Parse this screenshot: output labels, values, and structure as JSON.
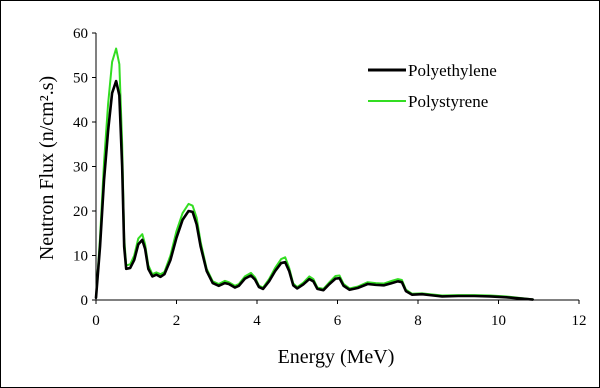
{
  "chart_data": {
    "type": "line",
    "title": "",
    "xlabel": "Energy (MeV)",
    "ylabel": "Neutron Flux (n/cm².s)",
    "xlim": [
      0,
      12
    ],
    "ylim": [
      0,
      60
    ],
    "xticks": [
      0,
      2,
      4,
      6,
      8,
      10,
      12
    ],
    "yticks": [
      0,
      10,
      20,
      30,
      40,
      50,
      60
    ],
    "grid": false,
    "legend_position": "top-right",
    "series": [
      {
        "name": "Polyethylene",
        "color": "#000000",
        "points": [
          [
            0.0,
            0.5
          ],
          [
            0.1,
            12.0
          ],
          [
            0.2,
            27.0
          ],
          [
            0.3,
            38.0
          ],
          [
            0.4,
            46.5
          ],
          [
            0.5,
            49.2
          ],
          [
            0.58,
            46.0
          ],
          [
            0.65,
            30.0
          ],
          [
            0.7,
            12.0
          ],
          [
            0.75,
            7.0
          ],
          [
            0.85,
            7.2
          ],
          [
            0.95,
            9.0
          ],
          [
            1.05,
            12.5
          ],
          [
            1.15,
            13.5
          ],
          [
            1.22,
            11.5
          ],
          [
            1.3,
            7.0
          ],
          [
            1.4,
            5.3
          ],
          [
            1.5,
            5.7
          ],
          [
            1.6,
            5.2
          ],
          [
            1.7,
            5.8
          ],
          [
            1.85,
            9.0
          ],
          [
            2.0,
            14.0
          ],
          [
            2.15,
            18.0
          ],
          [
            2.3,
            20.0
          ],
          [
            2.4,
            19.8
          ],
          [
            2.5,
            17.0
          ],
          [
            2.6,
            12.0
          ],
          [
            2.75,
            6.5
          ],
          [
            2.9,
            3.8
          ],
          [
            3.05,
            3.2
          ],
          [
            3.2,
            3.8
          ],
          [
            3.3,
            3.6
          ],
          [
            3.45,
            2.8
          ],
          [
            3.55,
            3.2
          ],
          [
            3.7,
            4.8
          ],
          [
            3.85,
            5.5
          ],
          [
            3.95,
            4.6
          ],
          [
            4.05,
            2.9
          ],
          [
            4.15,
            2.5
          ],
          [
            4.3,
            4.2
          ],
          [
            4.45,
            6.5
          ],
          [
            4.6,
            8.3
          ],
          [
            4.7,
            8.5
          ],
          [
            4.8,
            6.5
          ],
          [
            4.9,
            3.3
          ],
          [
            5.0,
            2.6
          ],
          [
            5.15,
            3.5
          ],
          [
            5.3,
            4.7
          ],
          [
            5.4,
            4.2
          ],
          [
            5.5,
            2.5
          ],
          [
            5.65,
            2.2
          ],
          [
            5.8,
            3.6
          ],
          [
            5.95,
            4.8
          ],
          [
            6.05,
            4.9
          ],
          [
            6.15,
            3.2
          ],
          [
            6.3,
            2.3
          ],
          [
            6.5,
            2.7
          ],
          [
            6.75,
            3.6
          ],
          [
            6.95,
            3.4
          ],
          [
            7.15,
            3.3
          ],
          [
            7.35,
            3.8
          ],
          [
            7.5,
            4.2
          ],
          [
            7.6,
            4.0
          ],
          [
            7.7,
            2.0
          ],
          [
            7.85,
            1.2
          ],
          [
            8.1,
            1.3
          ],
          [
            8.3,
            1.1
          ],
          [
            8.6,
            0.8
          ],
          [
            9.0,
            0.9
          ],
          [
            9.4,
            0.9
          ],
          [
            9.8,
            0.8
          ],
          [
            10.2,
            0.6
          ],
          [
            10.6,
            0.3
          ],
          [
            10.85,
            0.1
          ]
        ]
      },
      {
        "name": "Polystyrene",
        "color": "#33dd22",
        "points": [
          [
            0.0,
            0.5
          ],
          [
            0.1,
            14.0
          ],
          [
            0.2,
            31.0
          ],
          [
            0.3,
            44.0
          ],
          [
            0.4,
            53.5
          ],
          [
            0.5,
            56.5
          ],
          [
            0.58,
            53.0
          ],
          [
            0.65,
            35.0
          ],
          [
            0.7,
            14.0
          ],
          [
            0.75,
            7.8
          ],
          [
            0.85,
            8.0
          ],
          [
            0.95,
            10.0
          ],
          [
            1.05,
            13.8
          ],
          [
            1.15,
            14.8
          ],
          [
            1.22,
            12.5
          ],
          [
            1.3,
            7.8
          ],
          [
            1.4,
            5.8
          ],
          [
            1.5,
            6.2
          ],
          [
            1.6,
            5.8
          ],
          [
            1.7,
            6.3
          ],
          [
            1.85,
            10.0
          ],
          [
            2.0,
            15.5
          ],
          [
            2.15,
            19.5
          ],
          [
            2.3,
            21.6
          ],
          [
            2.4,
            21.2
          ],
          [
            2.5,
            18.5
          ],
          [
            2.6,
            13.0
          ],
          [
            2.75,
            7.0
          ],
          [
            2.9,
            4.2
          ],
          [
            3.05,
            3.6
          ],
          [
            3.2,
            4.3
          ],
          [
            3.3,
            4.0
          ],
          [
            3.45,
            3.2
          ],
          [
            3.55,
            3.6
          ],
          [
            3.7,
            5.3
          ],
          [
            3.85,
            6.1
          ],
          [
            3.95,
            5.1
          ],
          [
            4.05,
            3.2
          ],
          [
            4.15,
            2.8
          ],
          [
            4.3,
            4.7
          ],
          [
            4.45,
            7.2
          ],
          [
            4.6,
            9.2
          ],
          [
            4.7,
            9.6
          ],
          [
            4.8,
            7.2
          ],
          [
            4.9,
            3.7
          ],
          [
            5.0,
            2.9
          ],
          [
            5.15,
            3.9
          ],
          [
            5.3,
            5.3
          ],
          [
            5.4,
            4.7
          ],
          [
            5.5,
            2.8
          ],
          [
            5.65,
            2.5
          ],
          [
            5.8,
            4.0
          ],
          [
            5.95,
            5.4
          ],
          [
            6.05,
            5.5
          ],
          [
            6.15,
            3.6
          ],
          [
            6.3,
            2.6
          ],
          [
            6.5,
            3.0
          ],
          [
            6.75,
            4.0
          ],
          [
            6.95,
            3.8
          ],
          [
            7.15,
            3.7
          ],
          [
            7.35,
            4.3
          ],
          [
            7.5,
            4.7
          ],
          [
            7.6,
            4.5
          ],
          [
            7.7,
            2.3
          ],
          [
            7.85,
            1.4
          ],
          [
            8.1,
            1.5
          ],
          [
            8.3,
            1.3
          ],
          [
            8.6,
            1.0
          ],
          [
            9.0,
            1.1
          ],
          [
            9.4,
            1.1
          ],
          [
            9.8,
            1.0
          ],
          [
            10.2,
            0.8
          ],
          [
            10.6,
            0.4
          ],
          [
            10.85,
            0.15
          ]
        ]
      }
    ]
  }
}
